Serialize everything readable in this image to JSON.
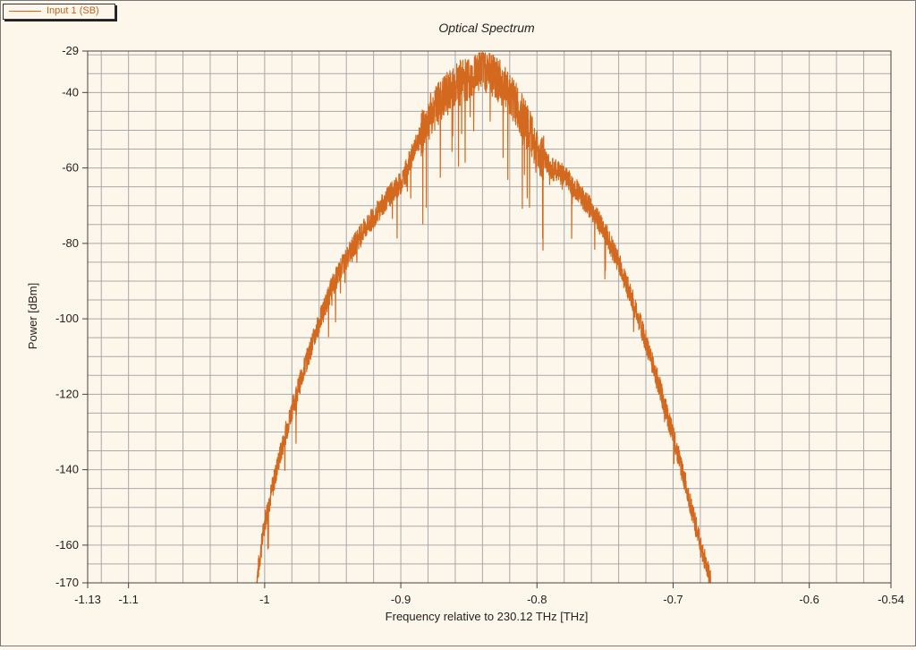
{
  "legend": {
    "label": "Input 1  (SB)",
    "color": "#d2691e"
  },
  "chart_data": {
    "type": "line",
    "title": "Optical Spectrum",
    "xlabel": "Frequency relative to 230.12 THz [THz]",
    "ylabel": "Power [dBm]",
    "xlim": [
      -1.13,
      -0.54
    ],
    "ylim": [
      -170,
      -29
    ],
    "xticks": [
      {
        "v": -1.13,
        "t": "-1.13"
      },
      {
        "v": -1.1,
        "t": "-1.1"
      },
      {
        "v": -1.0,
        "t": "-1"
      },
      {
        "v": -0.9,
        "t": "-0.9"
      },
      {
        "v": -0.8,
        "t": "-0.8"
      },
      {
        "v": -0.7,
        "t": "-0.7"
      },
      {
        "v": -0.6,
        "t": "-0.6"
      },
      {
        "v": -0.54,
        "t": "-0.54"
      }
    ],
    "yticks": [
      {
        "v": -29,
        "t": "-29"
      },
      {
        "v": -40,
        "t": "-40"
      },
      {
        "v": -60,
        "t": "-60"
      },
      {
        "v": -80,
        "t": "-80"
      },
      {
        "v": -100,
        "t": "-100"
      },
      {
        "v": -120,
        "t": "-120"
      },
      {
        "v": -140,
        "t": "-140"
      },
      {
        "v": -160,
        "t": "-160"
      },
      {
        "v": -170,
        "t": "-170"
      }
    ],
    "grid": true,
    "series": [
      {
        "name": "Input 1  (SB)",
        "color": "#d2691e",
        "x": [
          -1.006,
          -1.0,
          -0.99,
          -0.98,
          -0.97,
          -0.96,
          -0.95,
          -0.94,
          -0.93,
          -0.92,
          -0.91,
          -0.9,
          -0.89,
          -0.88,
          -0.87,
          -0.86,
          -0.85,
          -0.84,
          -0.83,
          -0.82,
          -0.81,
          -0.8,
          -0.79,
          -0.78,
          -0.77,
          -0.76,
          -0.75,
          -0.74,
          -0.73,
          -0.72,
          -0.71,
          -0.7,
          -0.69,
          -0.68,
          -0.672
        ],
        "y": [
          -170,
          -154,
          -138,
          -124,
          -112,
          -101,
          -91,
          -84,
          -78,
          -73,
          -68,
          -64,
          -55,
          -47,
          -42,
          -38,
          -36,
          -33,
          -36,
          -40,
          -47,
          -55,
          -60,
          -62,
          -66,
          -71,
          -77,
          -85,
          -95,
          -106,
          -118,
          -131,
          -145,
          -160,
          -170
        ]
      }
    ]
  }
}
